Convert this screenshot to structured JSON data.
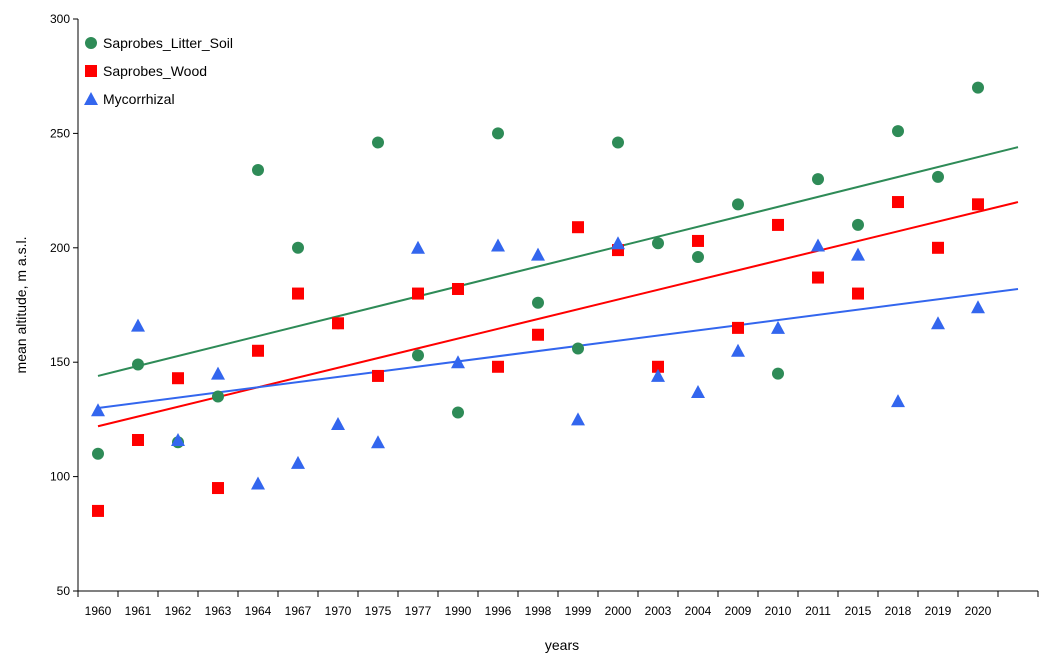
{
  "chart_data": {
    "type": "scatter",
    "xlabel": "years",
    "ylabel": "mean altitude, m a.s.l.",
    "ylim": [
      50,
      300
    ],
    "yticks": [
      50,
      100,
      150,
      200,
      250,
      300
    ],
    "categories": [
      "1960",
      "1961",
      "1962",
      "1963",
      "1964",
      "1967",
      "1970",
      "1975",
      "1977",
      "1990",
      "1996",
      "1998",
      "1999",
      "2000",
      "2003",
      "2004",
      "2009",
      "2010",
      "2011",
      "2015",
      "2018",
      "2019",
      "2020"
    ],
    "grid": false,
    "legend_position": "top-left",
    "series": [
      {
        "name": "Saprobes_Litter_Soil",
        "marker": "circle",
        "color": "#2e8b57",
        "values": [
          110,
          149,
          115,
          135,
          234,
          200,
          167,
          246,
          153,
          128,
          250,
          176,
          156,
          246,
          202,
          196,
          219,
          145,
          230,
          210,
          251,
          231,
          270
        ],
        "trend": [
          144,
          244
        ]
      },
      {
        "name": "Saprobes_Wood",
        "marker": "square",
        "color": "#ff0000",
        "values": [
          85,
          116,
          143,
          95,
          155,
          180,
          167,
          144,
          180,
          182,
          148,
          162,
          209,
          199,
          148,
          203,
          165,
          210,
          187,
          180,
          220,
          200,
          219
        ],
        "trend": [
          122,
          220
        ]
      },
      {
        "name": "Mycorrhizal",
        "marker": "triangle",
        "color": "#3366ee",
        "values": [
          129,
          166,
          116,
          145,
          97,
          106,
          123,
          115,
          200,
          150,
          201,
          197,
          125,
          202,
          144,
          137,
          155,
          165,
          201,
          197,
          133,
          167,
          174
        ],
        "trend": [
          130,
          182
        ]
      }
    ]
  }
}
